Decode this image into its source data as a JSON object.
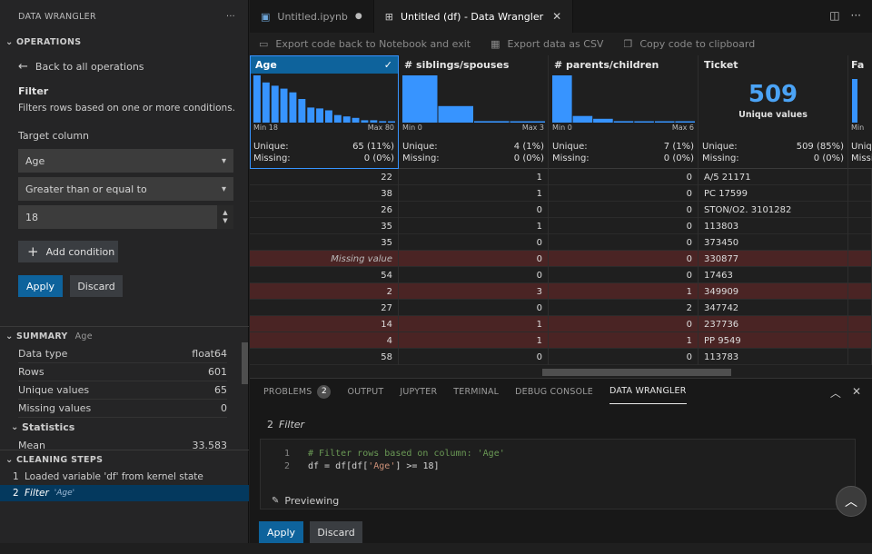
{
  "sidebar": {
    "title": "DATA WRANGLER",
    "more": "···",
    "operations": {
      "heading": "OPERATIONS",
      "back_label": "Back to all operations",
      "op_title": "Filter",
      "op_desc": "Filters rows based on one or more conditions.",
      "target_label": "Target column",
      "target_value": "Age",
      "condition_value": "Greater than or equal to",
      "number_value": "18",
      "add_condition": "Add condition",
      "apply": "Apply",
      "discard": "Discard"
    },
    "summary": {
      "heading": "SUMMARY",
      "column": "Age",
      "rows": [
        {
          "label": "Data type",
          "value": "float64"
        },
        {
          "label": "Rows",
          "value": "601"
        },
        {
          "label": "Unique values",
          "value": "65"
        },
        {
          "label": "Missing values",
          "value": "0"
        }
      ],
      "stats_heading": "Statistics",
      "mean_label": "Mean",
      "mean_value": "33.583"
    },
    "cleaning": {
      "heading": "CLEANING STEPS",
      "steps": [
        {
          "num": "1",
          "label": "Loaded variable 'df' from kernel state",
          "sub": ""
        },
        {
          "num": "2",
          "label": "Filter",
          "sub": "'Age'"
        }
      ]
    }
  },
  "tabs": [
    {
      "label": "Untitled.ipynb",
      "modified": "●"
    },
    {
      "label": "Untitled (df) - Data Wrangler",
      "close": "✕"
    }
  ],
  "toolbar": {
    "export_notebook": "Export code back to Notebook and exit",
    "export_csv": "Export data as CSV",
    "copy_code": "Copy code to clipboard"
  },
  "grid": {
    "columns": [
      {
        "name": "Age",
        "min": "Min 18",
        "max": "Max 80",
        "unique_label": "Unique:",
        "unique": "65 (11%)",
        "missing_label": "Missing:",
        "missing": "0 (0%)",
        "histogram": [
          100,
          85,
          78,
          72,
          64,
          50,
          32,
          30,
          26,
          16,
          13,
          10,
          5,
          5,
          3,
          2
        ]
      },
      {
        "name": "# siblings/spouses",
        "min": "Min 0",
        "max": "Max 3",
        "unique_label": "Unique:",
        "unique": "4 (1%)",
        "missing_label": "Missing:",
        "missing": "0 (0%)",
        "histogram": [
          100,
          35,
          3,
          2
        ]
      },
      {
        "name": "# parents/children",
        "min": "Min 0",
        "max": "Max 6",
        "unique_label": "Unique:",
        "unique": "7 (1%)",
        "missing_label": "Missing:",
        "missing": "0 (0%)",
        "histogram": [
          100,
          14,
          8,
          3,
          2,
          2,
          2
        ]
      },
      {
        "name": "Ticket",
        "big": "509",
        "big_sub": "Unique values",
        "unique_label": "Unique:",
        "unique": "509 (85%)",
        "missing_label": "Missing:",
        "missing": "0 (0%)"
      },
      {
        "name": "Fa",
        "min": "Min",
        "unique_label": "Unique",
        "missing_label": "Missin"
      }
    ],
    "rows": [
      {
        "age": "22",
        "sib": "1",
        "par": "0",
        "ticket": "A/5 21171",
        "flag": false
      },
      {
        "age": "38",
        "sib": "1",
        "par": "0",
        "ticket": "PC 17599",
        "flag": false
      },
      {
        "age": "26",
        "sib": "0",
        "par": "0",
        "ticket": "STON/O2. 3101282",
        "flag": false
      },
      {
        "age": "35",
        "sib": "1",
        "par": "0",
        "ticket": "113803",
        "flag": false
      },
      {
        "age": "35",
        "sib": "0",
        "par": "0",
        "ticket": "373450",
        "flag": false
      },
      {
        "age": "Missing value",
        "sib": "0",
        "par": "0",
        "ticket": "330877",
        "flag": true
      },
      {
        "age": "54",
        "sib": "0",
        "par": "0",
        "ticket": "17463",
        "flag": false
      },
      {
        "age": "2",
        "sib": "3",
        "par": "1",
        "ticket": "349909",
        "flag": true
      },
      {
        "age": "27",
        "sib": "0",
        "par": "2",
        "ticket": "347742",
        "flag": false
      },
      {
        "age": "14",
        "sib": "1",
        "par": "0",
        "ticket": "237736",
        "flag": true
      },
      {
        "age": "4",
        "sib": "1",
        "par": "1",
        "ticket": "PP 9549",
        "flag": true
      },
      {
        "age": "58",
        "sib": "0",
        "par": "0",
        "ticket": "113783",
        "flag": false
      }
    ]
  },
  "panel": {
    "tabs": [
      {
        "label": "PROBLEMS",
        "badge": "2"
      },
      {
        "label": "OUTPUT"
      },
      {
        "label": "JUPYTER"
      },
      {
        "label": "TERMINAL"
      },
      {
        "label": "DEBUG CONSOLE"
      },
      {
        "label": "DATA WRANGLER"
      }
    ],
    "step_num": "2",
    "step_op": "Filter",
    "code": {
      "line1_num": "1",
      "line1": "# Filter rows based on column: 'Age'",
      "line2_num": "2",
      "line2_a": "df = df[df[",
      "line2_str": "'Age'",
      "line2_b": "] >= 18]"
    },
    "previewing": "Previewing",
    "apply": "Apply",
    "discard": "Discard"
  },
  "colors": {
    "accent": "#0e639c",
    "histogram": "#3794ff",
    "flagged_row": "#4a2424"
  }
}
